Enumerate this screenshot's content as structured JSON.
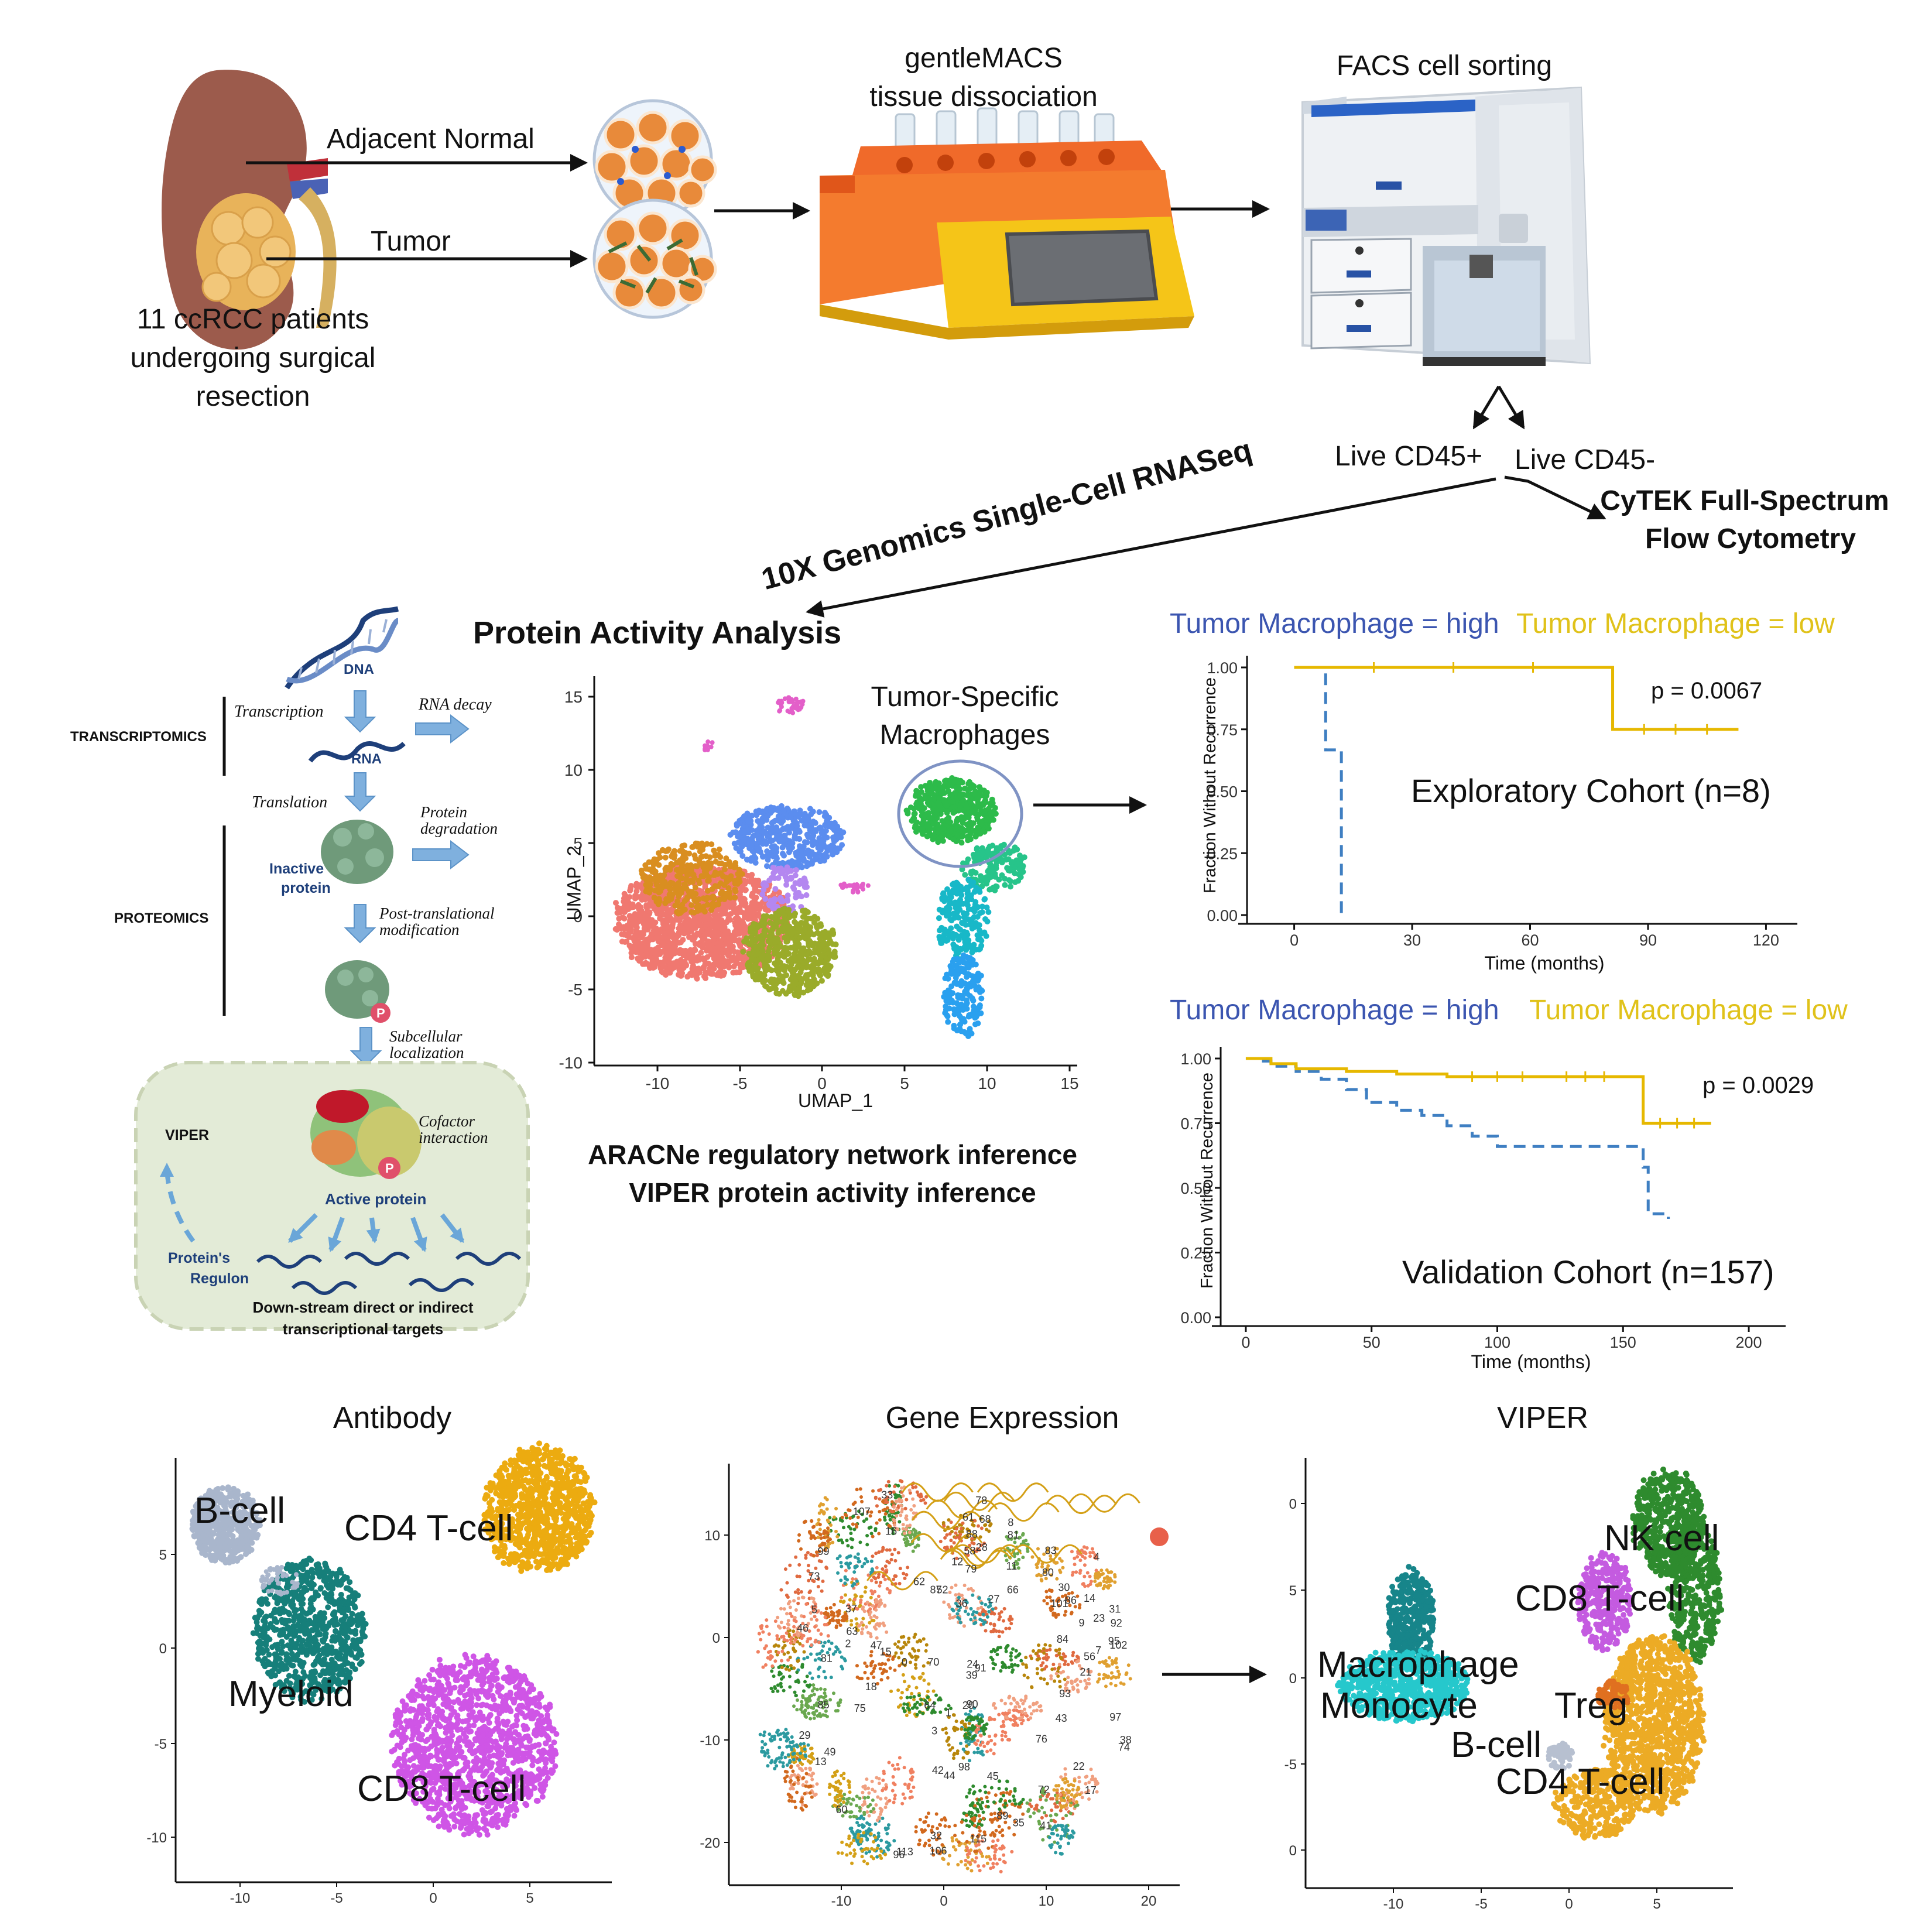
{
  "colors": {
    "kidney": "#9c5b4c",
    "tumor": "#e8b35a",
    "dish_cell": "#e88a3a",
    "machine_orange": "#f06a2a",
    "machine_yellow": "#f5c518",
    "facs_body": "#eef1f4",
    "km_high": "#3f7fc2",
    "km_low": "#e6b800",
    "legend_high": "#3b55b0",
    "legend_low": "#e0c21a",
    "cluster_red": "#f07870",
    "cluster_orange": "#d98e20",
    "cluster_blue": "#5b8def",
    "cluster_green": "#2dbb4a",
    "cluster_teal": "#18b8c8",
    "cluster_olive": "#9aab2a",
    "cluster_pink": "#e35fc9",
    "ab_bcell": "#a9b6cc",
    "ab_cd4": "#ecab10",
    "ab_myeloid": "#167f7a",
    "ab_cd8": "#cf55e6",
    "viper_nk": "#2e8b2e",
    "viper_cd8": "#c45be0",
    "viper_macro": "#26c8cc",
    "viper_mono": "#17858a",
    "viper_cd4": "#ecab25",
    "viper_treg": "#e07020",
    "viper_bcell": "#b7c0d0"
  },
  "workflow": {
    "adjacent_normal": "Adjacent Normal",
    "tumor": "Tumor",
    "patients_line1": "11 ccRCC patients",
    "patients_line2": "undergoing surgical",
    "patients_line3": "resection",
    "gentlemacs_line1": "gentleMACS",
    "gentlemacs_line2": "tissue dissociation",
    "facs": "FACS cell sorting",
    "live_pos": "Live CD45+",
    "live_neg": "Live CD45-",
    "cytek_line1": "CyTEK Full-Spectrum",
    "cytek_line2": "Flow Cytometry",
    "genomics": "10X Genomics Single-Cell RNASeq"
  },
  "protein_activity": {
    "title": "Protein Activity Analysis",
    "method_line1": "ARACNe regulatory network inference",
    "method_line2": "VIPER protein activity inference"
  },
  "schematic": {
    "dna": "DNA",
    "transcription": "Transcription",
    "rna_decay": "RNA decay",
    "rna": "RNA",
    "transcriptomics": "TRANSCRIPTOMICS",
    "translation": "Translation",
    "protein_degradation_1": "Protein",
    "protein_degradation_2": "degradation",
    "inactive_1": "Inactive",
    "inactive_2": "protein",
    "proteomics": "PROTEOMICS",
    "ptm_1": "Post-translational",
    "ptm_2": "modification",
    "subcellular_1": "Subcellular",
    "subcellular_2": "localization",
    "viper": "VIPER",
    "cofactor_1": "Cofactor",
    "cofactor_2": "interaction",
    "active": "Active protein",
    "regulon_1": "Protein's",
    "regulon_2": "Regulon",
    "targets_1": "Down-stream direct or indirect",
    "targets_2": "transcriptional targets",
    "p": "P"
  },
  "umap": {
    "annotation_1": "Tumor-Specific",
    "annotation_2": "Macrophages",
    "xlabel": "UMAP_1",
    "ylabel": "UMAP_2",
    "xticks": [
      "-10",
      "-5",
      "0",
      "5",
      "10",
      "15"
    ],
    "yticks": [
      "15",
      "10",
      "5",
      "0",
      "-5",
      "-10"
    ]
  },
  "chart_data": [
    {
      "type": "line",
      "chart": "km_exploratory",
      "legend_high": "Tumor Macrophage = high",
      "legend_low": "Tumor Macrophage = low",
      "title": "Exploratory Cohort (n=8)",
      "pvalue": "p = 0.0067",
      "ylabel": "Fraction Without Recurrence",
      "xlabel": "Time (months)",
      "xlim": [
        -12,
        125
      ],
      "ylim": [
        0,
        1
      ],
      "xticks": [
        "0",
        "30",
        "60",
        "90",
        "120"
      ],
      "yticks": [
        "1.00",
        "0.75",
        "0.50",
        "0.25",
        "0.00"
      ],
      "series": [
        {
          "name": "Tumor Macrophage = high",
          "x": [
            0,
            8,
            8,
            12,
            12
          ],
          "y": [
            1.0,
            1.0,
            0.667,
            0.667,
            0.0
          ]
        },
        {
          "name": "Tumor Macrophage = low",
          "x": [
            0,
            81,
            81,
            113
          ],
          "y": [
            1.0,
            1.0,
            0.75,
            0.75
          ]
        }
      ]
    },
    {
      "type": "line",
      "chart": "km_validation",
      "legend_high": "Tumor Macrophage = high",
      "legend_low": "Tumor Macrophage = low",
      "title": "Validation Cohort (n=157)",
      "pvalue": "p = 0.0029",
      "ylabel": "Fraction Without Recurrence",
      "xlabel": "Time (months)",
      "xlim": [
        -10,
        210
      ],
      "ylim": [
        0,
        1
      ],
      "xticks": [
        "0",
        "50",
        "100",
        "150",
        "200"
      ],
      "yticks": [
        "1.00",
        "0.75",
        "0.50",
        "0.25",
        "0.00"
      ],
      "series": [
        {
          "name": "Tumor Macrophage = high",
          "x": [
            0,
            5,
            10,
            20,
            30,
            40,
            48,
            60,
            70,
            80,
            90,
            100,
            158,
            160,
            168
          ],
          "y": [
            1.0,
            0.99,
            0.97,
            0.95,
            0.92,
            0.88,
            0.83,
            0.8,
            0.78,
            0.74,
            0.7,
            0.66,
            0.58,
            0.4,
            0.38
          ]
        },
        {
          "name": "Tumor Macrophage = low",
          "x": [
            0,
            10,
            20,
            40,
            60,
            80,
            120,
            150,
            158,
            185
          ],
          "y": [
            1.0,
            0.98,
            0.96,
            0.95,
            0.94,
            0.93,
            0.93,
            0.93,
            0.75,
            0.75
          ]
        }
      ]
    }
  ],
  "bottom": {
    "antibody_title": "Antibody",
    "gene_title": "Gene Expression",
    "viper_title": "VIPER",
    "ab_labels": [
      "B-cell",
      "CD4 T-cell",
      "Myeloid",
      "CD8 T-cell"
    ],
    "ab_xticks": [
      "-10",
      "-5",
      "0",
      "5"
    ],
    "ab_yticks": [
      "5",
      "0",
      "-5",
      "-10"
    ],
    "ge_xticks": [
      "-10",
      "0",
      "10",
      "20"
    ],
    "ge_yticks": [
      "10",
      "0",
      "-10",
      "-20"
    ],
    "ge_numbers": [
      "84",
      "76",
      "11",
      "18",
      "102",
      "47",
      "15",
      "42",
      "97",
      "96",
      "16",
      "83",
      "13",
      "2",
      "81",
      "74",
      "21",
      "89",
      "99",
      "52",
      "90",
      "12",
      "20",
      "14",
      "79",
      "91",
      "60",
      "115",
      "85",
      "35",
      "113",
      "86",
      "78",
      "70",
      "106",
      "62",
      "95",
      "28",
      "31",
      "17",
      "5",
      "72",
      "98",
      "101",
      "81",
      "37",
      "3",
      "75",
      "87",
      "23",
      "68",
      "4",
      "9",
      "41",
      "33",
      "66",
      "22",
      "7",
      "93",
      "56",
      "63",
      "1",
      "49",
      "64",
      "29",
      "0",
      "92",
      "44",
      "27",
      "24",
      "39",
      "58",
      "88",
      "30",
      "107",
      "43",
      "38",
      "46",
      "61",
      "45",
      "73",
      "36",
      "80",
      "8",
      "32"
    ],
    "viper_labels": [
      "NK cell",
      "CD8 T-cell",
      "Macrophage",
      "Monocyte",
      "Treg",
      "B-cell",
      "CD4 T-cell"
    ],
    "viper_xticks": [
      "-10",
      "-5",
      "0",
      "5"
    ],
    "viper_yticks": [
      "0",
      "5",
      "0",
      "-5",
      "0"
    ]
  }
}
